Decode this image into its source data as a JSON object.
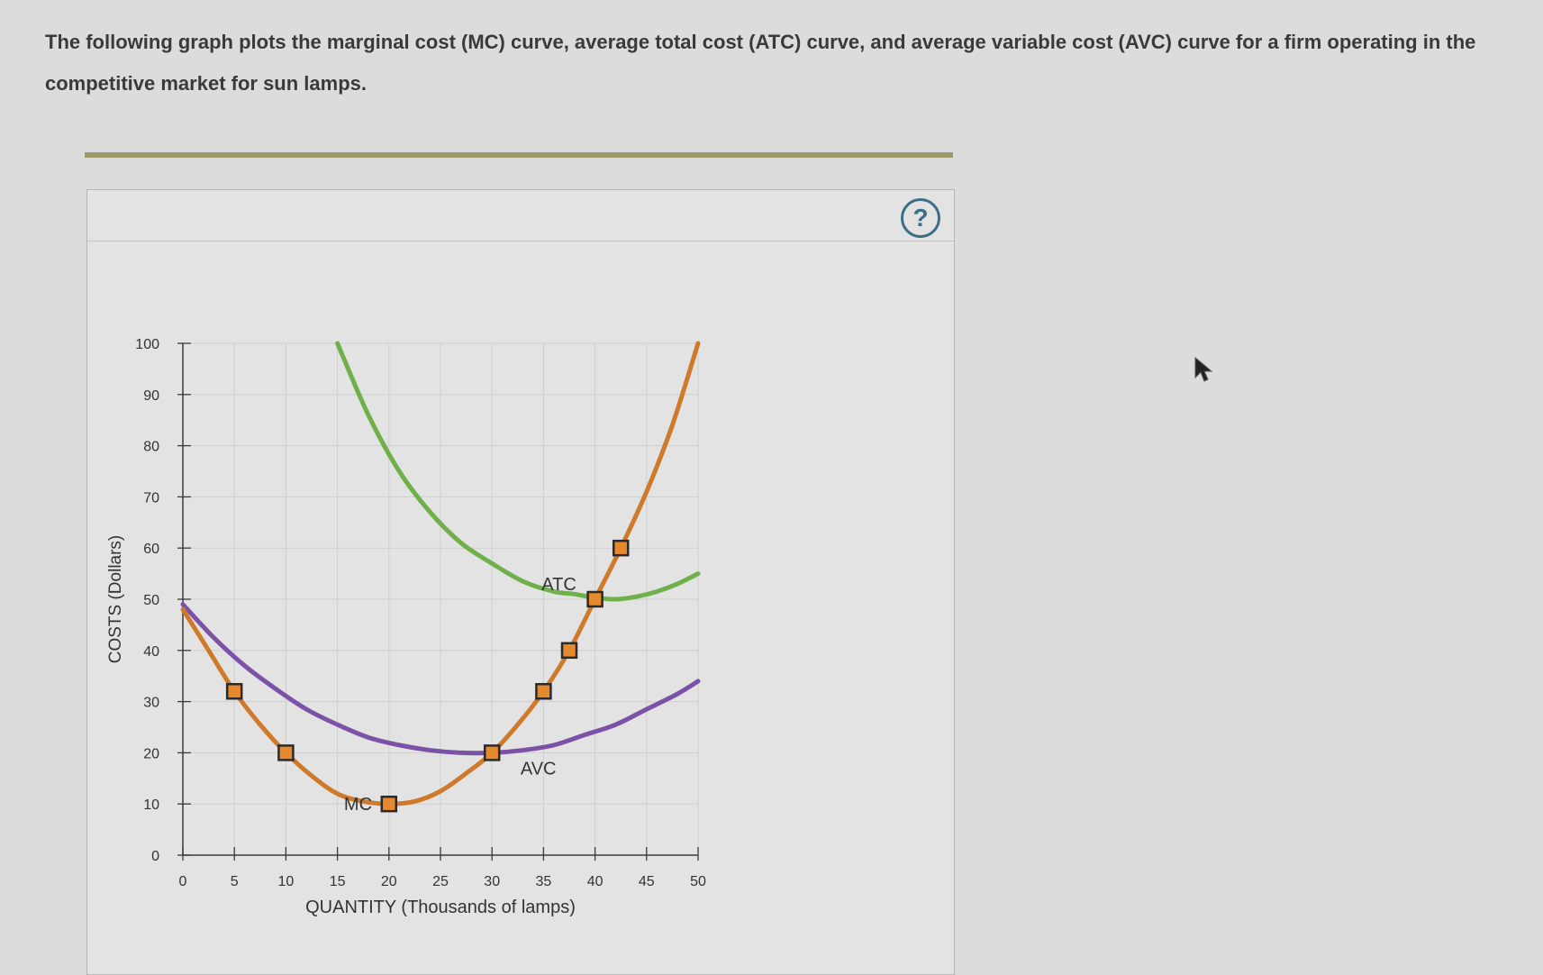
{
  "prompt": {
    "text": "The following graph plots the marginal cost (MC) curve, average total cost (ATC) curve, and average variable cost (AVC) curve for a firm operating in the competitive market for sun lamps."
  },
  "help_button": {
    "icon": "question-mark-icon",
    "label": "?"
  },
  "colors": {
    "mc": "#cf7a2a",
    "atc": "#6fb04a",
    "avc": "#7b52a8",
    "marker_fill": "#e5892c",
    "marker_stroke": "#2a2a2a",
    "grid": "#cfcfcf",
    "axis": "#3a3a3a"
  },
  "chart_data": {
    "type": "line",
    "xlabel": "QUANTITY (Thousands of lamps)",
    "ylabel": "COSTS (Dollars)",
    "xlim": [
      0,
      50
    ],
    "ylim": [
      0,
      100
    ],
    "xticks": [
      "0",
      "5",
      "10",
      "15",
      "20",
      "25",
      "30",
      "35",
      "40",
      "45",
      "50"
    ],
    "yticks": [
      "0",
      "10",
      "20",
      "30",
      "40",
      "50",
      "60",
      "70",
      "80",
      "90",
      "100"
    ],
    "grid": true,
    "series": [
      {
        "name": "ATC",
        "color": "#6fb04a",
        "points": [
          [
            15,
            100
          ],
          [
            18,
            86
          ],
          [
            21,
            75
          ],
          [
            24,
            67
          ],
          [
            27,
            61
          ],
          [
            30,
            57
          ],
          [
            33,
            53.5
          ],
          [
            36,
            51.5
          ],
          [
            38,
            51
          ],
          [
            40,
            50.3
          ],
          [
            42,
            50
          ],
          [
            44,
            50.5
          ],
          [
            46,
            51.5
          ],
          [
            48,
            53
          ],
          [
            50,
            55
          ]
        ]
      },
      {
        "name": "AVC",
        "color": "#7b52a8",
        "points": [
          [
            0,
            49
          ],
          [
            3,
            42.5
          ],
          [
            6,
            37
          ],
          [
            9,
            32.5
          ],
          [
            12,
            28.5
          ],
          [
            15,
            25.5
          ],
          [
            18,
            23
          ],
          [
            21,
            21.5
          ],
          [
            24,
            20.5
          ],
          [
            27,
            20
          ],
          [
            30,
            20
          ],
          [
            33,
            20.5
          ],
          [
            36,
            21.5
          ],
          [
            39,
            23.5
          ],
          [
            42,
            25.5
          ],
          [
            45,
            28.5
          ],
          [
            48,
            31.5
          ],
          [
            50,
            34
          ]
        ]
      },
      {
        "name": "MC",
        "color": "#cf7a2a",
        "points": [
          [
            0,
            48
          ],
          [
            2.5,
            40
          ],
          [
            5,
            32
          ],
          [
            7.5,
            25.5
          ],
          [
            10,
            20
          ],
          [
            12.5,
            15.5
          ],
          [
            15,
            12
          ],
          [
            17.5,
            10.5
          ],
          [
            20,
            10
          ],
          [
            22.5,
            10.5
          ],
          [
            25,
            12.5
          ],
          [
            27.5,
            16
          ],
          [
            30,
            20
          ],
          [
            32.5,
            25.5
          ],
          [
            35,
            32
          ],
          [
            37.5,
            40
          ],
          [
            40,
            50
          ],
          [
            42.5,
            60
          ],
          [
            45,
            71
          ],
          [
            47.5,
            84
          ],
          [
            50,
            100
          ]
        ]
      }
    ],
    "markers": [
      [
        5,
        32
      ],
      [
        10,
        20
      ],
      [
        20,
        10
      ],
      [
        30,
        20
      ],
      [
        35,
        32
      ],
      [
        37.5,
        40
      ],
      [
        40,
        50
      ],
      [
        42.5,
        60
      ]
    ],
    "annotations": [
      {
        "text": "ATC",
        "x": 36.5,
        "y": 53
      },
      {
        "text": "AVC",
        "x": 34.5,
        "y": 17
      },
      {
        "text": "MC",
        "x": 17,
        "y": 10
      }
    ]
  }
}
